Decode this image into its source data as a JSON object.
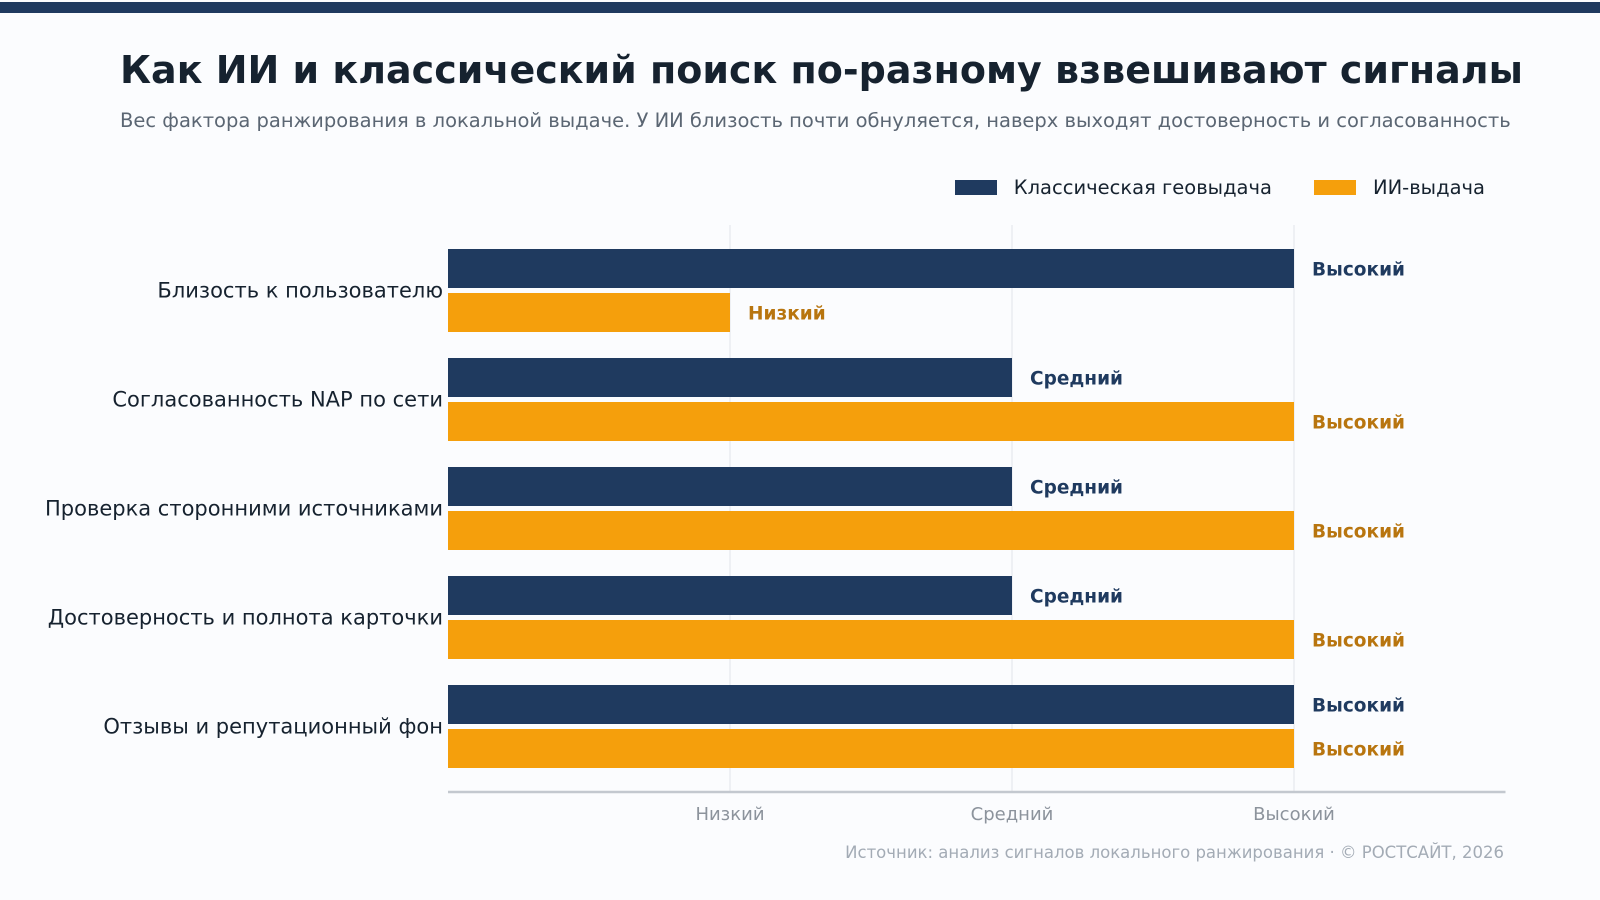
{
  "colors": {
    "classic": "#1f3a5f",
    "ai": "#f59f0c",
    "ai_label": "#b8750f",
    "axis": "#c3c8cf",
    "grid": "#e6e9ee",
    "tick": "#8c939c",
    "category": "#16222f"
  },
  "header": {
    "title": "Как ИИ и классический поиск по-разному взвешивают сигналы",
    "subtitle": "Вес фактора ранжирования в локальной выдаче. У ИИ близость почти обнуляется, наверх выходят достоверность и согласованность"
  },
  "chart_data": {
    "type": "bar",
    "orientation": "horizontal",
    "categories": [
      "Близость к пользователю",
      "Согласованность NAP по сети",
      "Проверка сторонними источниками",
      "Достоверность и полнота карточки",
      "Отзывы и репутационный фон"
    ],
    "series": [
      {
        "name": "Классическая геовыдача",
        "values": [
          3,
          2,
          2,
          2,
          3
        ],
        "labels": [
          "Высокий",
          "Средний",
          "Средний",
          "Средний",
          "Высокий"
        ]
      },
      {
        "name": "ИИ-выдача",
        "values": [
          1,
          3,
          3,
          3,
          3
        ],
        "labels": [
          "Низкий",
          "Высокий",
          "Высокий",
          "Высокий",
          "Высокий"
        ]
      }
    ],
    "x_ticks": [
      {
        "value": 1,
        "label": "Низкий"
      },
      {
        "value": 2,
        "label": "Средний"
      },
      {
        "value": 3,
        "label": "Высокий"
      }
    ],
    "xlim": [
      0,
      3.75
    ],
    "grid": true,
    "legend_position": "top-right"
  },
  "footer": {
    "source": "Источник: анализ сигналов локального ранжирования · © РОСТСАЙТ, 2026"
  }
}
